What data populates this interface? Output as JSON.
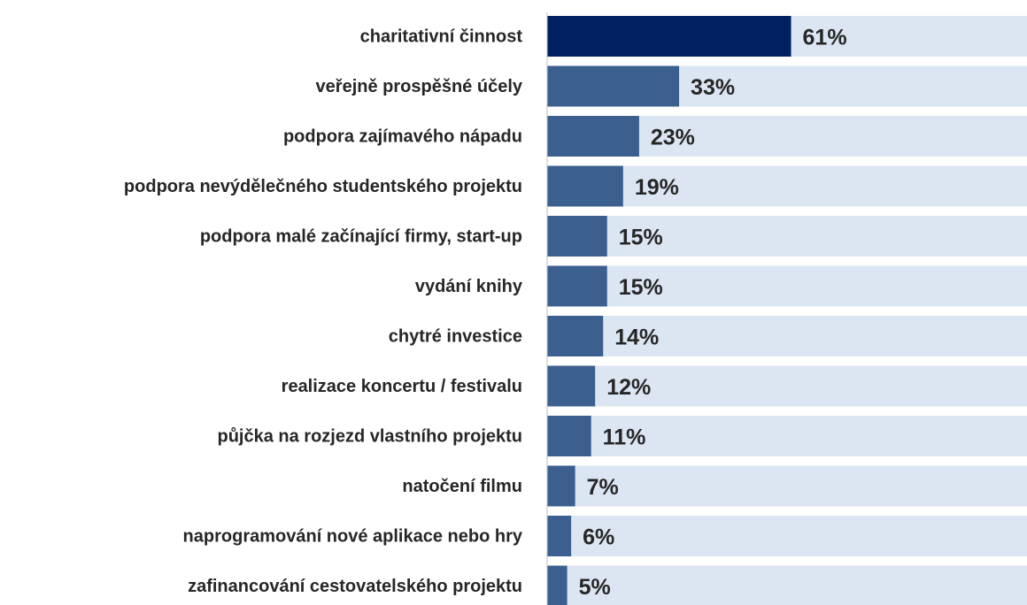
{
  "chart_data": {
    "type": "hbar",
    "categories": [
      "charitativní činnost",
      "veřejně prospěšné účely",
      "podpora zajímavého nápadu",
      "podpora nevýdělečného studentského projektu",
      "podpora malé začínající firmy, start-up",
      "vydání knihy",
      "chytré investice",
      "realizace koncertu / festivalu",
      "půjčka na rozjezd vlastního projektu",
      "natočení filmu",
      "naprogramování nové aplikace nebo hry",
      "zafinancování cestovatelského projektu"
    ],
    "values": [
      61,
      33,
      23,
      19,
      15,
      15,
      14,
      12,
      11,
      7,
      6,
      5
    ],
    "value_labels": [
      "61%",
      "33%",
      "23%",
      "19%",
      "15%",
      "15%",
      "14%",
      "12%",
      "11%",
      "7%",
      "6%",
      "5%"
    ],
    "colors": [
      "#002060",
      "#3b5f8f",
      "#3b5f8f",
      "#3b5f8f",
      "#3b5f8f",
      "#3b5f8f",
      "#3b5f8f",
      "#3b5f8f",
      "#3b5f8f",
      "#3b5f8f",
      "#3b5f8f",
      "#3b5f8f"
    ],
    "background_color": "#dce6f2",
    "xlim": [
      0,
      120
    ]
  }
}
